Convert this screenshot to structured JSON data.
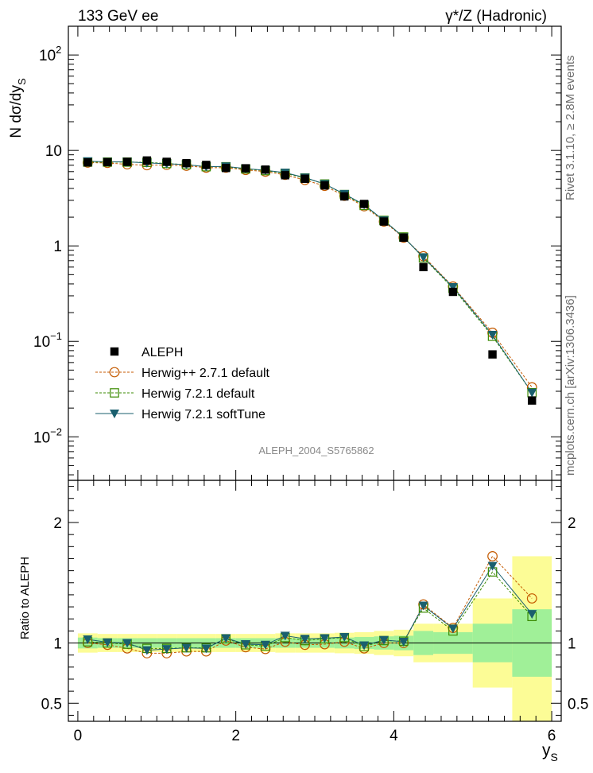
{
  "header": {
    "left": "133 GeV ee",
    "right": "γ*/Z (Hadronic)"
  },
  "side": {
    "rivet": "Rivet 3.1.10, ≥ 2.8M events",
    "mcplots": "mcplots.cern.ch [arXiv:1306.3436]"
  },
  "watermark": "ALEPH_2004_S5765862",
  "chart_data": [
    {
      "type": "scatter",
      "panel": "main",
      "ylabel": "N dσ/dy",
      "ylabel_sub": "S",
      "yscale": "log",
      "ylim": [
        0.0035,
        200
      ],
      "xlim": [
        -0.12,
        6.12
      ],
      "yticks": [
        {
          "base": "10",
          "exp": "2"
        },
        {
          "text": "10"
        },
        {
          "text": "1"
        },
        {
          "base": "10",
          "exp": "−1"
        },
        {
          "base": "10",
          "exp": "−2"
        }
      ],
      "x": [
        0.125,
        0.375,
        0.625,
        0.875,
        1.125,
        1.375,
        1.625,
        1.875,
        2.125,
        2.375,
        2.625,
        2.875,
        3.125,
        3.375,
        3.625,
        3.875,
        4.125,
        4.375,
        4.75,
        5.25,
        5.75
      ],
      "series": [
        {
          "name": "ALEPH",
          "color": "#000000",
          "marker": "square",
          "values": [
            7.5,
            7.55,
            7.6,
            7.85,
            7.6,
            7.35,
            7.05,
            6.55,
            6.5,
            6.3,
            5.5,
            5.05,
            4.3,
            3.3,
            2.75,
            1.8,
            1.22,
            0.6,
            0.33,
            0.073,
            0.024
          ]
        },
        {
          "name": "Herwig++ 2.7.1 default",
          "color": "#c45a00",
          "marker": "open-circle",
          "values": [
            7.45,
            7.4,
            7.15,
            7.0,
            7.05,
            6.9,
            6.6,
            6.6,
            6.25,
            6.0,
            5.55,
            4.9,
            4.25,
            3.35,
            2.6,
            1.8,
            1.22,
            0.78,
            0.375,
            0.123,
            0.033
          ]
        },
        {
          "name": "Herwig 7.2.1 default",
          "color": "#3a8a00",
          "marker": "open-square",
          "values": [
            7.55,
            7.55,
            7.55,
            7.5,
            7.3,
            7.1,
            6.75,
            6.75,
            6.4,
            6.15,
            5.75,
            5.15,
            4.45,
            3.45,
            2.65,
            1.85,
            1.24,
            0.75,
            0.36,
            0.113,
            0.029
          ]
        },
        {
          "name": "Herwig 7.2.1 softTune",
          "color": "#1a5f6e",
          "marker": "filled-triangle-down",
          "values": [
            7.7,
            7.6,
            7.6,
            7.4,
            7.25,
            7.1,
            6.75,
            6.8,
            6.45,
            6.2,
            5.85,
            5.2,
            4.45,
            3.5,
            2.7,
            1.85,
            1.23,
            0.76,
            0.37,
            0.117,
            0.029
          ]
        }
      ]
    },
    {
      "type": "scatter",
      "panel": "ratio",
      "xlabel": "y",
      "xlabel_sub": "S",
      "ylabel": "Ratio to ALEPH",
      "ylim": [
        0.35,
        2.35
      ],
      "xlim": [
        -0.12,
        6.12
      ],
      "yticks": [
        "0.5",
        "1",
        "2"
      ],
      "xticks": [
        "0",
        "2",
        "4",
        "6"
      ],
      "bands": {
        "edges": [
          0,
          0.25,
          0.5,
          0.75,
          1.0,
          1.25,
          1.5,
          1.75,
          2.0,
          2.25,
          2.5,
          2.75,
          3.0,
          3.25,
          3.5,
          3.75,
          4.0,
          4.25,
          4.5,
          5.0,
          5.5,
          6.0
        ],
        "stat_color": "#a0f098",
        "total_color": "#fcfc96",
        "stat": [
          0.045,
          0.04,
          0.04,
          0.04,
          0.04,
          0.04,
          0.04,
          0.04,
          0.04,
          0.04,
          0.04,
          0.04,
          0.04,
          0.045,
          0.05,
          0.055,
          0.06,
          0.1,
          0.09,
          0.16,
          0.28
        ],
        "total": [
          0.08,
          0.075,
          0.075,
          0.075,
          0.075,
          0.075,
          0.075,
          0.075,
          0.075,
          0.075,
          0.08,
          0.08,
          0.08,
          0.085,
          0.09,
          0.1,
          0.11,
          0.16,
          0.16,
          0.37,
          0.72
        ]
      },
      "x": [
        0.125,
        0.375,
        0.625,
        0.875,
        1.125,
        1.375,
        1.625,
        1.875,
        2.125,
        2.375,
        2.625,
        2.875,
        3.125,
        3.375,
        3.625,
        3.875,
        4.125,
        4.375,
        4.75,
        5.25,
        5.75
      ],
      "series": [
        {
          "name": "Herwig++ 2.7.1 default",
          "color": "#c45a00",
          "marker": "open-circle",
          "values": [
            1.0,
            0.985,
            0.955,
            0.915,
            0.915,
            0.93,
            0.93,
            1.02,
            0.965,
            0.95,
            1.01,
            0.985,
            0.99,
            1.01,
            0.955,
            1.0,
            1.0,
            1.32,
            1.125,
            1.72,
            1.37
          ]
        },
        {
          "name": "Herwig 7.2.1 default",
          "color": "#3a8a00",
          "marker": "open-square",
          "values": [
            1.01,
            1.0,
            0.99,
            0.955,
            0.955,
            0.96,
            0.96,
            1.035,
            0.985,
            0.975,
            1.045,
            1.02,
            1.035,
            1.045,
            0.97,
            1.02,
            1.015,
            1.29,
            1.1,
            1.59,
            1.22
          ]
        },
        {
          "name": "Herwig 7.2.1 softTune",
          "color": "#1a5f6e",
          "marker": "filled-triangle-down",
          "values": [
            1.03,
            1.005,
            1.0,
            0.94,
            0.95,
            0.96,
            0.955,
            1.04,
            0.99,
            0.985,
            1.06,
            1.035,
            1.04,
            1.05,
            0.98,
            1.025,
            1.01,
            1.31,
            1.12,
            1.64,
            1.24
          ]
        }
      ]
    }
  ]
}
